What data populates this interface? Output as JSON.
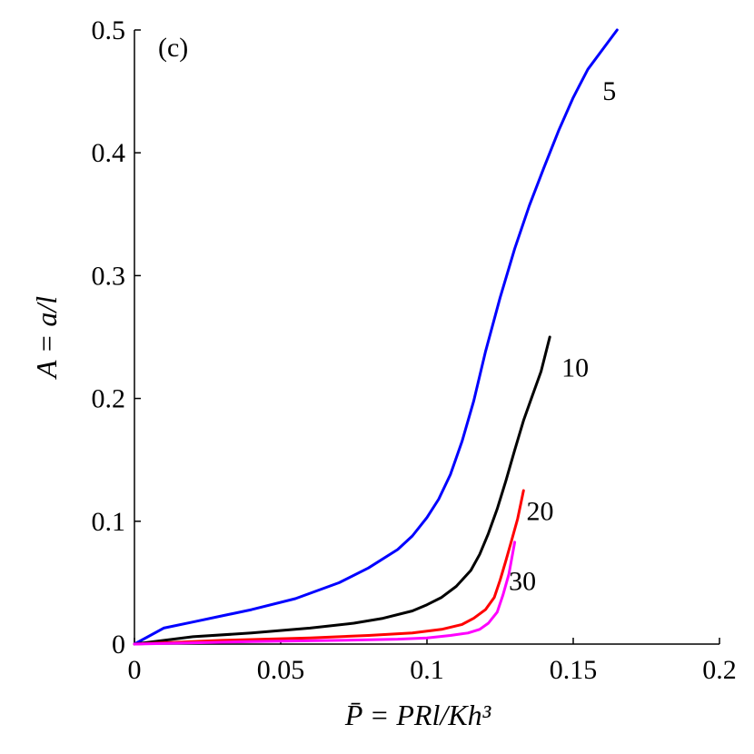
{
  "chart_data": {
    "type": "line",
    "panel_label": "(c)",
    "xlabel": "P̄ = PRl/Kh³",
    "ylabel": "A = a/l",
    "xlim": [
      0,
      0.2
    ],
    "ylim": [
      0,
      0.5
    ],
    "x_ticks": [
      {
        "value": 0,
        "label": "0"
      },
      {
        "value": 0.05,
        "label": "0.05"
      },
      {
        "value": 0.1,
        "label": "0.1"
      },
      {
        "value": 0.15,
        "label": "0.15"
      },
      {
        "value": 0.2,
        "label": "0.2"
      }
    ],
    "y_ticks": [
      {
        "value": 0,
        "label": "0"
      },
      {
        "value": 0.1,
        "label": "0.1"
      },
      {
        "value": 0.2,
        "label": "0.2"
      },
      {
        "value": 0.3,
        "label": "0.3"
      },
      {
        "value": 0.4,
        "label": "0.4"
      },
      {
        "value": 0.5,
        "label": "0.5"
      }
    ],
    "grid": false,
    "series": [
      {
        "name": "5",
        "color": "#0000ff",
        "label_at": [
          0.16,
          0.443
        ],
        "points": [
          [
            0,
            0
          ],
          [
            0.01,
            0.013
          ],
          [
            0.02,
            0.018
          ],
          [
            0.03,
            0.023
          ],
          [
            0.04,
            0.028
          ],
          [
            0.055,
            0.037
          ],
          [
            0.07,
            0.05
          ],
          [
            0.08,
            0.062
          ],
          [
            0.09,
            0.077
          ],
          [
            0.095,
            0.088
          ],
          [
            0.1,
            0.103
          ],
          [
            0.104,
            0.118
          ],
          [
            0.108,
            0.138
          ],
          [
            0.112,
            0.165
          ],
          [
            0.116,
            0.198
          ],
          [
            0.12,
            0.238
          ],
          [
            0.125,
            0.282
          ],
          [
            0.13,
            0.322
          ],
          [
            0.135,
            0.357
          ],
          [
            0.14,
            0.388
          ],
          [
            0.145,
            0.418
          ],
          [
            0.15,
            0.445
          ],
          [
            0.155,
            0.468
          ],
          [
            0.16,
            0.484
          ],
          [
            0.165,
            0.5
          ]
        ]
      },
      {
        "name": "10",
        "color": "#000000",
        "label_at": [
          0.146,
          0.218
        ],
        "points": [
          [
            0,
            0
          ],
          [
            0.02,
            0.006
          ],
          [
            0.04,
            0.009
          ],
          [
            0.06,
            0.013
          ],
          [
            0.075,
            0.017
          ],
          [
            0.085,
            0.021
          ],
          [
            0.095,
            0.027
          ],
          [
            0.1,
            0.032
          ],
          [
            0.105,
            0.038
          ],
          [
            0.11,
            0.047
          ],
          [
            0.115,
            0.06
          ],
          [
            0.118,
            0.073
          ],
          [
            0.121,
            0.09
          ],
          [
            0.124,
            0.11
          ],
          [
            0.127,
            0.133
          ],
          [
            0.13,
            0.158
          ],
          [
            0.133,
            0.182
          ],
          [
            0.136,
            0.202
          ],
          [
            0.139,
            0.222
          ],
          [
            0.142,
            0.25
          ]
        ]
      },
      {
        "name": "20",
        "color": "#ff0000",
        "label_at": [
          0.134,
          0.101
        ],
        "points": [
          [
            0,
            0
          ],
          [
            0.03,
            0.003
          ],
          [
            0.06,
            0.005
          ],
          [
            0.08,
            0.007
          ],
          [
            0.095,
            0.009
          ],
          [
            0.105,
            0.012
          ],
          [
            0.112,
            0.016
          ],
          [
            0.116,
            0.021
          ],
          [
            0.12,
            0.028
          ],
          [
            0.123,
            0.038
          ],
          [
            0.125,
            0.052
          ],
          [
            0.127,
            0.068
          ],
          [
            0.129,
            0.085
          ],
          [
            0.131,
            0.102
          ],
          [
            0.133,
            0.125
          ]
        ]
      },
      {
        "name": "30",
        "color": "#ff00ff",
        "label_at": [
          0.128,
          0.044
        ],
        "points": [
          [
            0,
            0
          ],
          [
            0.04,
            0.002
          ],
          [
            0.07,
            0.003
          ],
          [
            0.09,
            0.004
          ],
          [
            0.1,
            0.005
          ],
          [
            0.108,
            0.007
          ],
          [
            0.114,
            0.009
          ],
          [
            0.118,
            0.012
          ],
          [
            0.121,
            0.017
          ],
          [
            0.124,
            0.026
          ],
          [
            0.126,
            0.04
          ],
          [
            0.128,
            0.057
          ],
          [
            0.13,
            0.083
          ]
        ]
      }
    ]
  }
}
